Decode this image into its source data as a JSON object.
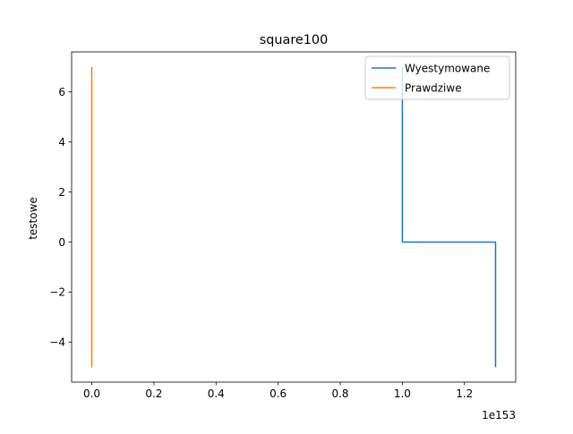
{
  "chart_data": {
    "type": "line",
    "title": "square100",
    "xlabel": "",
    "ylabel": "testowe",
    "x_offset_text": "1e153",
    "xlim": [
      -0.065,
      1.365
    ],
    "ylim": [
      -5.6,
      7.6
    ],
    "x_ticks": [
      0.0,
      0.2,
      0.4,
      0.6,
      0.8,
      1.0,
      1.2
    ],
    "x_tick_labels": [
      "0.0",
      "0.2",
      "0.4",
      "0.6",
      "0.8",
      "1.0",
      "1.2"
    ],
    "y_ticks": [
      -4,
      -2,
      0,
      2,
      4,
      6
    ],
    "y_tick_labels": [
      "−4",
      "−2",
      "0",
      "2",
      "4",
      "6"
    ],
    "grid": false,
    "legend_position": "top-right",
    "series": [
      {
        "name": "Wyestymowane",
        "color": "#1f77b4",
        "x": [
          1.0,
          1.0,
          1.0,
          1.3,
          1.3
        ],
        "y": [
          7,
          6,
          0,
          0,
          -5
        ]
      },
      {
        "name": "Prawdziwe",
        "color": "#ff7f0e",
        "x": [
          0.0,
          0.0
        ],
        "y": [
          7,
          -5
        ]
      }
    ]
  }
}
